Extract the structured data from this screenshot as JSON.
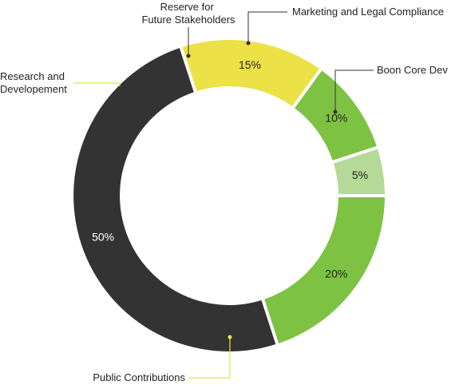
{
  "chart_data": {
    "type": "pie",
    "title": "",
    "series": [
      {
        "name": "Boon Core Dev",
        "value": 20,
        "label": "20%",
        "color": "#7dc242"
      },
      {
        "name": "Public Contributions",
        "value": 50,
        "label": "50%",
        "color": "#333333"
      },
      {
        "name": "Research and Developement",
        "value": 15,
        "label": "15%",
        "color": "#ece147"
      },
      {
        "name": "Reserve for Future Stakeholders",
        "value": 10,
        "label": "10%",
        "color": "#7dc242"
      },
      {
        "name": "Marketing and Legal Compliance",
        "value": 5,
        "label": "5%",
        "color": "#b5da97"
      }
    ],
    "legend": "callouts",
    "style": "donut"
  }
}
